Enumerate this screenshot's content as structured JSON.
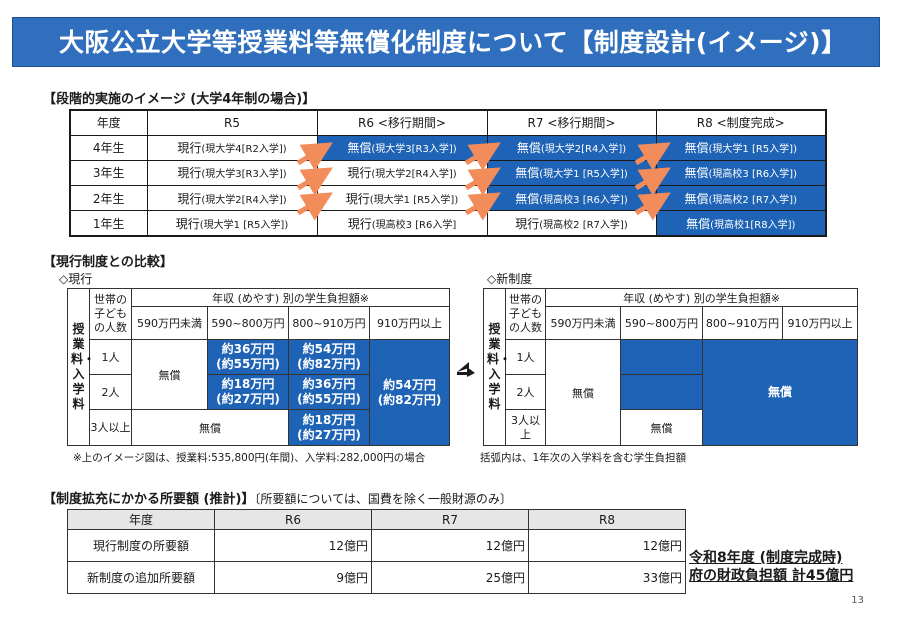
{
  "title": "大阪公立大学等授業料等無償化制度について【制度設計(イメージ)】",
  "phase": {
    "heading": "【段階的実施のイメージ (大学4年制の場合)】",
    "columns": [
      "年度",
      "R5",
      "R6 <移行期間>",
      "R7 <移行期間>",
      "R8 <制度完成>"
    ],
    "rows": [
      {
        "year": "4年生",
        "cells": [
          {
            "status": "現行",
            "detail": "(現大学4[R2入学])"
          },
          {
            "status": "無償",
            "detail": "(現大学3[R3入学])"
          },
          {
            "status": "無償",
            "detail": "(現大学2[R4入学])"
          },
          {
            "status": "無償",
            "detail": "(現大学1 [R5入学])"
          }
        ]
      },
      {
        "year": "3年生",
        "cells": [
          {
            "status": "現行",
            "detail": "(現大学3[R3入学])"
          },
          {
            "status": "現行",
            "detail": "(現大学2[R4入学])"
          },
          {
            "status": "無償",
            "detail": "(現大学1 [R5入学])"
          },
          {
            "status": "無償",
            "detail": "(現高校3 [R6入学])"
          }
        ]
      },
      {
        "year": "2年生",
        "cells": [
          {
            "status": "現行",
            "detail": "(現大学2[R4入学])"
          },
          {
            "status": "現行",
            "detail": "(現大学1 [R5入学])"
          },
          {
            "status": "無償",
            "detail": "(現高校3 [R6入学])"
          },
          {
            "status": "無償",
            "detail": "(現高校2 [R7入学])"
          }
        ]
      },
      {
        "year": "1年生",
        "cells": [
          {
            "status": "現行",
            "detail": "(現大学1 [R5入学])"
          },
          {
            "status": "現行",
            "detail": "(現高校3 [R6入学]"
          },
          {
            "status": "現行",
            "detail": "(現高校2 [R7入学])"
          },
          {
            "status": "無償",
            "detail": "(現高校1[R8入学])"
          }
        ]
      }
    ]
  },
  "compare": {
    "heading": "【現行制度との比較】",
    "current_label": "◇現行",
    "new_label": "◇新制度",
    "vertical_label": "授業料・入学料",
    "children_header": "世帯の子どもの人数",
    "income_header": "年収 (めやす) 別の学生負担額※",
    "income_brackets": [
      "590万円未満",
      "590~800万円",
      "800~910万円",
      "910万円以上"
    ],
    "child_counts": [
      "1人",
      "2人",
      "3人以上"
    ],
    "free": "無償",
    "current_cells": {
      "c1_b2": "約36万円\n(約55万円)",
      "c1_b3": "約54万円\n(約82万円)",
      "c2_b2": "約18万円\n(約27万円)",
      "c2_b3": "約36万円\n(約55万円)",
      "c3_b3": "約18万円\n(約27万円)",
      "b4": "約54万円\n(約82万円)"
    },
    "footnote_left": "※上のイメージ図は、授業料:535,800円(年間)、入学料:282,000円の場合",
    "footnote_right": "括弧内は、1年次の入学料を含む学生負担額"
  },
  "cost": {
    "heading": "【制度拡充にかかる所要額 (推計)】",
    "heading_note": "〔所要額については、国費を除く一般財源のみ〕",
    "columns": [
      "年度",
      "R6",
      "R7",
      "R8"
    ],
    "rows": [
      {
        "label": "現行制度の所要額",
        "values": [
          "12億円",
          "12億円",
          "12億円"
        ]
      },
      {
        "label": "新制度の追加所要額",
        "values": [
          "9億円",
          "25億円",
          "33億円"
        ]
      }
    ]
  },
  "summary": {
    "line1": "令和8年度 (制度完成時)",
    "line2": "府の財政負担額 計45億円"
  },
  "page_number": "13",
  "colors": {
    "accent_blue": "#1e63b6",
    "title_blue": "#2f6fbd",
    "arrow_orange": "#f28c5a"
  }
}
